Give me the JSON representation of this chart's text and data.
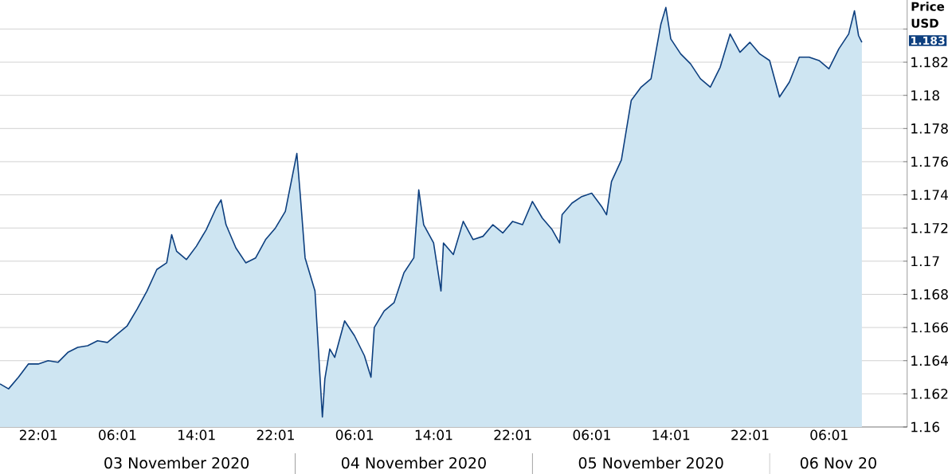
{
  "chart_data": {
    "type": "area",
    "ylabel": "Price USD",
    "x": [
      "2020-11-02T18:08",
      "2020-11-02T19:00",
      "2020-11-02T20:00",
      "2020-11-02T21:00",
      "2020-11-02T22:00",
      "2020-11-02T23:00",
      "2020-11-03T00:00",
      "2020-11-03T01:00",
      "2020-11-03T02:00",
      "2020-11-03T03:00",
      "2020-11-03T04:00",
      "2020-11-03T05:00",
      "2020-11-03T06:00",
      "2020-11-03T07:00",
      "2020-11-03T08:00",
      "2020-11-03T09:00",
      "2020-11-03T10:00",
      "2020-11-03T11:00",
      "2020-11-03T11:30",
      "2020-11-03T12:00",
      "2020-11-03T13:00",
      "2020-11-03T14:00",
      "2020-11-03T15:00",
      "2020-11-03T16:00",
      "2020-11-03T16:30",
      "2020-11-03T17:00",
      "2020-11-03T18:00",
      "2020-11-03T19:00",
      "2020-11-03T20:00",
      "2020-11-03T21:00",
      "2020-11-03T22:00",
      "2020-11-03T23:00",
      "2020-11-04T00:10",
      "2020-11-04T00:30",
      "2020-11-04T01:00",
      "2020-11-04T02:00",
      "2020-11-04T02:45",
      "2020-11-04T03:00",
      "2020-11-04T03:30",
      "2020-11-04T04:00",
      "2020-11-04T05:00",
      "2020-11-04T06:00",
      "2020-11-04T07:00",
      "2020-11-04T07:40",
      "2020-11-04T08:00",
      "2020-11-04T09:00",
      "2020-11-04T10:00",
      "2020-11-04T11:00",
      "2020-11-04T12:00",
      "2020-11-04T12:30",
      "2020-11-04T13:00",
      "2020-11-04T14:00",
      "2020-11-04T14:45",
      "2020-11-04T15:00",
      "2020-11-04T16:00",
      "2020-11-04T17:00",
      "2020-11-04T18:00",
      "2020-11-04T19:00",
      "2020-11-04T20:00",
      "2020-11-04T21:00",
      "2020-11-04T22:00",
      "2020-11-04T23:00",
      "2020-11-05T00:00",
      "2020-11-05T01:00",
      "2020-11-05T02:00",
      "2020-11-05T02:45",
      "2020-11-05T03:00",
      "2020-11-05T04:00",
      "2020-11-05T05:00",
      "2020-11-05T06:00",
      "2020-11-05T07:00",
      "2020-11-05T07:30",
      "2020-11-05T08:00",
      "2020-11-05T09:00",
      "2020-11-05T10:00",
      "2020-11-05T11:00",
      "2020-11-05T12:00",
      "2020-11-05T13:00",
      "2020-11-05T13:30",
      "2020-11-05T14:00",
      "2020-11-05T15:00",
      "2020-11-05T16:00",
      "2020-11-05T17:00",
      "2020-11-05T18:00",
      "2020-11-05T19:00",
      "2020-11-05T20:00",
      "2020-11-05T21:00",
      "2020-11-05T22:00",
      "2020-11-05T23:00",
      "2020-11-06T00:00",
      "2020-11-06T01:00",
      "2020-11-06T02:00",
      "2020-11-06T03:00",
      "2020-11-06T04:00",
      "2020-11-06T05:00",
      "2020-11-06T06:00",
      "2020-11-06T07:00",
      "2020-11-06T08:00",
      "2020-11-06T08:35",
      "2020-11-06T09:00",
      "2020-11-06T09:20"
    ],
    "series": [
      {
        "color": "#0d3f7f",
        "values": [
          1.1626,
          1.1623,
          1.163,
          1.1638,
          1.1638,
          1.164,
          1.1639,
          1.1645,
          1.1648,
          1.1649,
          1.1652,
          1.1651,
          1.1656,
          1.1661,
          1.1671,
          1.1682,
          1.1695,
          1.1699,
          1.1716,
          1.1706,
          1.1701,
          1.1709,
          1.1719,
          1.1732,
          1.1737,
          1.1722,
          1.1708,
          1.1699,
          1.1702,
          1.1713,
          1.172,
          1.173,
          1.1765,
          1.1741,
          1.1702,
          1.1682,
          1.1606,
          1.1629,
          1.1647,
          1.1642,
          1.1664,
          1.1655,
          1.1643,
          1.163,
          1.166,
          1.167,
          1.1675,
          1.1693,
          1.1702,
          1.1743,
          1.1722,
          1.1711,
          1.1682,
          1.1711,
          1.1704,
          1.1724,
          1.1713,
          1.1715,
          1.1722,
          1.1717,
          1.1724,
          1.1722,
          1.1736,
          1.1726,
          1.1719,
          1.1711,
          1.1728,
          1.1735,
          1.1739,
          1.1741,
          1.1733,
          1.1728,
          1.1748,
          1.1761,
          1.1797,
          1.1805,
          1.181,
          1.1843,
          1.1853,
          1.1834,
          1.1825,
          1.1819,
          1.181,
          1.1805,
          1.1817,
          1.1837,
          1.1826,
          1.1832,
          1.1825,
          1.1821,
          1.1799,
          1.1808,
          1.1823,
          1.1823,
          1.1821,
          1.1816,
          1.1828,
          1.1837,
          1.1851,
          1.1836,
          1.1832
        ]
      }
    ],
    "xlim": [
      "2020-11-02T18:08",
      "2020-11-06T13:55"
    ],
    "xticks": [
      {
        "value": "2020-11-02T22:01",
        "label": "22:01"
      },
      {
        "value": "2020-11-03T06:01",
        "label": "06:01"
      },
      {
        "value": "2020-11-03T14:01",
        "label": "14:01"
      },
      {
        "value": "2020-11-03T22:01",
        "label": "22:01"
      },
      {
        "value": "2020-11-04T06:01",
        "label": "06:01"
      },
      {
        "value": "2020-11-04T14:01",
        "label": "14:01"
      },
      {
        "value": "2020-11-04T22:01",
        "label": "22:01"
      },
      {
        "value": "2020-11-05T06:01",
        "label": "06:01"
      },
      {
        "value": "2020-11-05T14:01",
        "label": "14:01"
      },
      {
        "value": "2020-11-05T22:01",
        "label": "22:01"
      },
      {
        "value": "2020-11-06T06:01",
        "label": "06:01"
      }
    ],
    "ylim": [
      1.16,
      1.18575
    ],
    "yticks": [
      1.16,
      1.162,
      1.164,
      1.166,
      1.168,
      1.17,
      1.172,
      1.174,
      1.176,
      1.178,
      1.18,
      1.182,
      {
        "value": 1.184,
        "label": null
      }
    ],
    "grid": "y",
    "annotations": [
      "03 November 2020",
      "04 November 2020",
      "05 November 2020",
      "06 Nov 20",
      "1.183"
    ]
  }
}
